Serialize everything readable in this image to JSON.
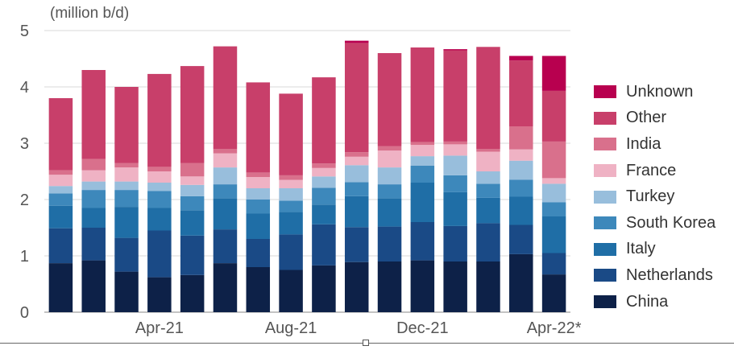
{
  "chart_data": {
    "type": "bar",
    "stacked": true,
    "unit_label": "(million b/d)",
    "ylim": [
      0,
      5
    ],
    "yticks": [
      "0",
      "1",
      "2",
      "3",
      "4",
      "5"
    ],
    "grid": true,
    "legend_position": "right",
    "categories": [
      "Jan-21",
      "Feb-21",
      "Mar-21",
      "Apr-21",
      "May-21",
      "Jun-21",
      "Jul-21",
      "Aug-21",
      "Sep-21",
      "Oct-21",
      "Nov-21",
      "Dec-21",
      "Jan-22",
      "Feb-22",
      "Mar-22",
      "Apr-22*"
    ],
    "xtick_labels": [
      {
        "index": 3,
        "label": "Apr-21"
      },
      {
        "index": 7,
        "label": "Aug-21"
      },
      {
        "index": 11,
        "label": "Dec-21"
      },
      {
        "index": 15,
        "label": "Apr-22*"
      }
    ],
    "series": [
      {
        "name": "China",
        "color": "#0d2148",
        "values": [
          0.87,
          0.92,
          0.72,
          0.62,
          0.66,
          0.87,
          0.8,
          0.75,
          0.83,
          0.89,
          0.9,
          0.92,
          0.9,
          0.9,
          1.03,
          0.67
        ]
      },
      {
        "name": "Netherlands",
        "color": "#1a4a86",
        "values": [
          0.62,
          0.58,
          0.6,
          0.83,
          0.7,
          0.6,
          0.5,
          0.63,
          0.73,
          0.62,
          0.62,
          0.68,
          0.63,
          0.68,
          0.52,
          0.38
        ]
      },
      {
        "name": "Italy",
        "color": "#1f6ea6",
        "values": [
          0.4,
          0.35,
          0.55,
          0.4,
          0.45,
          0.55,
          0.45,
          0.4,
          0.35,
          0.55,
          0.5,
          0.7,
          0.6,
          0.45,
          0.5,
          0.65
        ]
      },
      {
        "name": "South Korea",
        "color": "#3d88bb",
        "values": [
          0.22,
          0.32,
          0.3,
          0.3,
          0.25,
          0.25,
          0.25,
          0.2,
          0.3,
          0.25,
          0.25,
          0.3,
          0.3,
          0.25,
          0.3,
          0.25
        ]
      },
      {
        "name": "Turkey",
        "color": "#98bedc",
        "values": [
          0.13,
          0.15,
          0.15,
          0.15,
          0.2,
          0.3,
          0.2,
          0.22,
          0.2,
          0.3,
          0.3,
          0.17,
          0.35,
          0.22,
          0.34,
          0.33
        ]
      },
      {
        "name": "France",
        "color": "#efb2c4",
        "values": [
          0.2,
          0.2,
          0.25,
          0.2,
          0.15,
          0.25,
          0.2,
          0.15,
          0.15,
          0.15,
          0.3,
          0.2,
          0.2,
          0.35,
          0.2,
          0.1
        ]
      },
      {
        "name": "India",
        "color": "#d9708c",
        "values": [
          0.08,
          0.2,
          0.08,
          0.08,
          0.24,
          0.08,
          0.08,
          0.08,
          0.08,
          0.08,
          0.08,
          0.05,
          0.05,
          0.05,
          0.41,
          0.65
        ]
      },
      {
        "name": "Other",
        "color": "#c83f6a",
        "values": [
          1.28,
          1.58,
          1.35,
          1.65,
          1.72,
          1.82,
          1.6,
          1.45,
          1.53,
          1.94,
          1.65,
          1.68,
          1.62,
          1.81,
          1.17,
          0.9
        ]
      },
      {
        "name": "Unknown",
        "color": "#b8004f",
        "values": [
          0,
          0,
          0,
          0,
          0,
          0,
          0,
          0,
          0,
          0.04,
          0,
          0,
          0.02,
          0,
          0.08,
          0.62
        ]
      }
    ]
  }
}
